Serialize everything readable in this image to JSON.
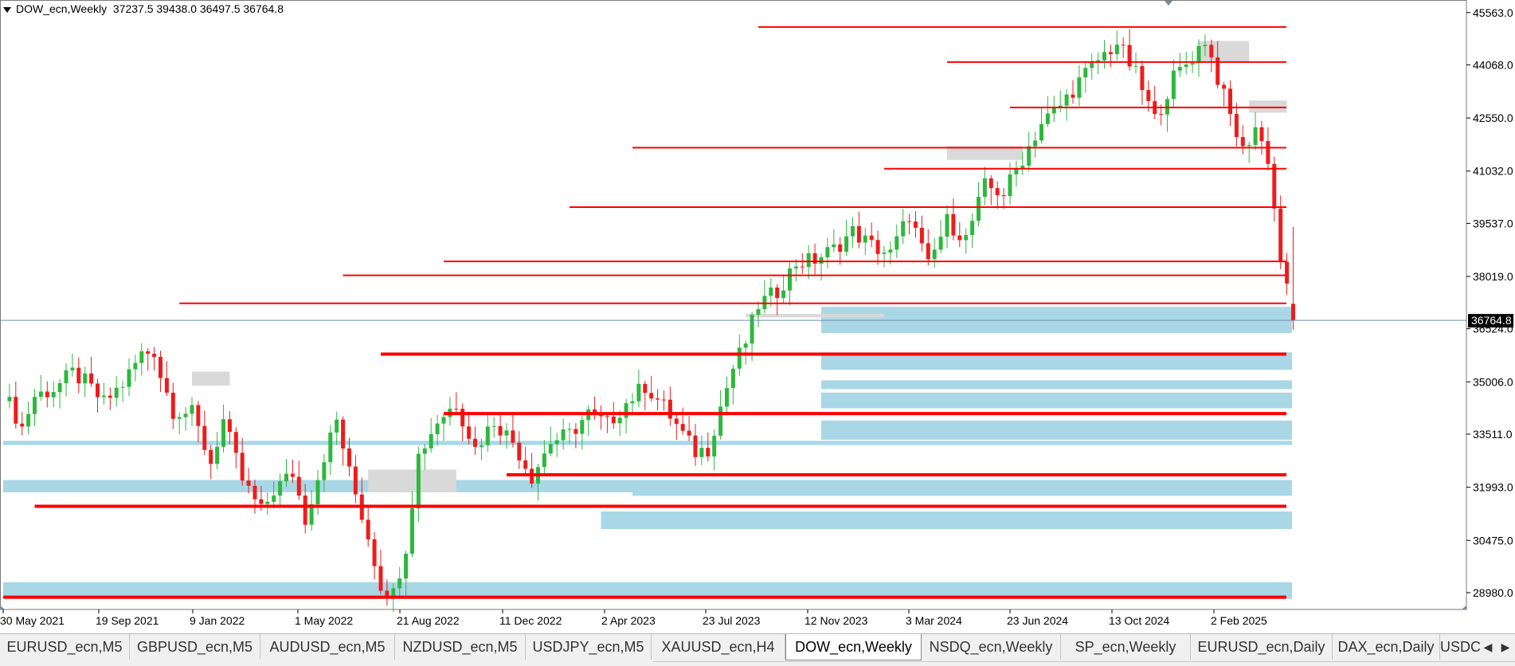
{
  "title": {
    "symbol": "DOW_ecn,Weekly",
    "ohlc": "37237.5 39438.0 36497.5 36764.8"
  },
  "price_axis": {
    "labels": [
      "45563.0",
      "44068.0",
      "42550.0",
      "41032.0",
      "39537.0",
      "38019.0",
      "36524.0",
      "35006.0",
      "33511.0",
      "31993.0",
      "30475.0",
      "28980.0"
    ],
    "current_price": "36764.8"
  },
  "time_axis": {
    "labels": [
      "30 May 2021",
      "19 Sep 2021",
      "9 Jan 2022",
      "1 May 2022",
      "21 Aug 2022",
      "11 Dec 2022",
      "2 Apr 2023",
      "23 Jul 2023",
      "12 Nov 2023",
      "3 Mar 2024",
      "23 Jun 2024",
      "13 Oct 2024",
      "2 Feb 2025"
    ]
  },
  "colors": {
    "bull": "#2db83d",
    "bear": "#ee1c1c",
    "zone_blue": "#a9d7e6",
    "zone_gray": "#d9d9d9",
    "level_red": "#ff0000",
    "price_line": "#6d8eb0"
  },
  "chart_data": {
    "type": "candlestick",
    "title": "DOW_ecn,Weekly",
    "ohlc_last": {
      "open": 37237.5,
      "high": 39438.0,
      "low": 36497.5,
      "close": 36764.8
    },
    "current_price": 36764.8,
    "ylim": [
      28500,
      45900
    ],
    "y_ticks": [
      45563.0,
      44068.0,
      42550.0,
      41032.0,
      39537.0,
      38019.0,
      36524.0,
      35006.0,
      33511.0,
      31993.0,
      30475.0,
      28980.0
    ],
    "x_labels": [
      "30 May 2021",
      "19 Sep 2021",
      "9 Jan 2022",
      "1 May 2022",
      "21 Aug 2022",
      "11 Dec 2022",
      "2 Apr 2023",
      "23 Jul 2023",
      "12 Nov 2023",
      "3 Mar 2024",
      "23 Jun 2024",
      "13 Oct 2024",
      "2 Feb 2025"
    ],
    "close_path": [
      [
        0,
        34700
      ],
      [
        3,
        33700
      ],
      [
        5,
        34600
      ],
      [
        8,
        34800
      ],
      [
        11,
        35250
      ],
      [
        13,
        35000
      ],
      [
        16,
        34400
      ],
      [
        19,
        34950
      ],
      [
        22,
        35800
      ],
      [
        24,
        35900
      ],
      [
        25,
        35200
      ],
      [
        27,
        34200
      ],
      [
        30,
        34100
      ],
      [
        33,
        32700
      ],
      [
        35,
        33900
      ],
      [
        38,
        32200
      ],
      [
        41,
        31300
      ],
      [
        43,
        31900
      ],
      [
        46,
        32400
      ],
      [
        48,
        31100
      ],
      [
        51,
        32900
      ],
      [
        53,
        33900
      ],
      [
        55,
        32400
      ],
      [
        58,
        30600
      ],
      [
        60,
        29200
      ],
      [
        62,
        28950
      ],
      [
        64,
        30300
      ],
      [
        66,
        32900
      ],
      [
        69,
        33900
      ],
      [
        72,
        34400
      ],
      [
        75,
        33100
      ],
      [
        78,
        33900
      ],
      [
        81,
        33300
      ],
      [
        84,
        32300
      ],
      [
        87,
        33300
      ],
      [
        90,
        33500
      ],
      [
        93,
        34100
      ],
      [
        96,
        33800
      ],
      [
        99,
        34400
      ],
      [
        102,
        34900
      ],
      [
        105,
        34300
      ],
      [
        108,
        33500
      ],
      [
        110,
        33000
      ],
      [
        112,
        33100
      ],
      [
        114,
        34300
      ],
      [
        116,
        35400
      ],
      [
        118,
        36150
      ],
      [
        120,
        37200
      ],
      [
        123,
        37600
      ],
      [
        126,
        38400
      ],
      [
        129,
        38500
      ],
      [
        132,
        38800
      ],
      [
        135,
        39300
      ],
      [
        138,
        38900
      ],
      [
        141,
        38650
      ],
      [
        144,
        39800
      ],
      [
        147,
        38300
      ],
      [
        150,
        39600
      ],
      [
        153,
        39100
      ],
      [
        156,
        40600
      ],
      [
        159,
        40400
      ],
      [
        162,
        41400
      ],
      [
        165,
        42400
      ],
      [
        168,
        42900
      ],
      [
        171,
        43600
      ],
      [
        174,
        44200
      ],
      [
        177,
        44700
      ],
      [
        180,
        43800
      ],
      [
        183,
        42500
      ],
      [
        186,
        43700
      ],
      [
        189,
        44300
      ],
      [
        191,
        44800
      ],
      [
        193,
        43700
      ],
      [
        195,
        42600
      ],
      [
        197,
        41600
      ],
      [
        199,
        42300
      ],
      [
        201,
        41400
      ],
      [
        203,
        38500
      ],
      [
        205,
        36765
      ]
    ],
    "series": [
      {
        "name": "zones_blue",
        "values": [
          [
            0,
            33320,
            33200
          ],
          [
            0,
            32200,
            31850
          ],
          [
            0,
            29280,
            28800
          ],
          [
            130,
            37150,
            36400
          ],
          [
            130,
            35850,
            35350
          ],
          [
            130,
            35050,
            34800
          ],
          [
            130,
            34700,
            34250
          ],
          [
            130,
            33900,
            33350
          ],
          [
            100,
            32000,
            31750
          ],
          [
            95,
            31300,
            30800
          ]
        ]
      },
      {
        "name": "levels_red",
        "values": [
          [
            28,
            37250
          ],
          [
            54,
            38050
          ],
          [
            70,
            38450
          ],
          [
            90,
            40000
          ],
          [
            100,
            41700
          ],
          [
            120,
            45150
          ],
          [
            150,
            44150
          ],
          [
            160,
            42850
          ],
          [
            140,
            41100
          ],
          [
            60,
            35800
          ],
          [
            70,
            34100
          ],
          [
            80,
            32350
          ],
          [
            5,
            31450
          ],
          [
            0,
            28850
          ]
        ]
      }
    ]
  },
  "tabs": [
    "EURUSD_ecn,M5",
    "GBPUSD_ecn,M5",
    "AUDUSD_ecn,M5",
    "NZDUSD_ecn,M5",
    "USDJPY_ecn,M5",
    "XAUUSD_ecn,H4",
    "DOW_ecn,Weekly",
    "NSDQ_ecn,Weekly",
    "SP_ecn,Weekly",
    "EURUSD_ecn,Daily",
    "DAX_ecn,Daily",
    "USDC"
  ],
  "active_tab": "DOW_ecn,Weekly",
  "tab_nav": {
    "prev": "◀",
    "next": "▶"
  }
}
